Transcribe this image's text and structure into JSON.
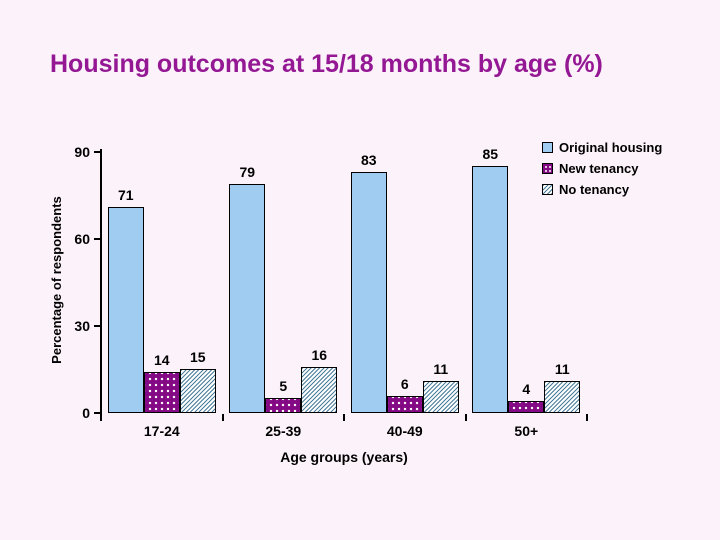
{
  "title": "Housing outcomes at 15/18 months by age (%)",
  "chart_data": {
    "type": "bar",
    "categories": [
      "17-24",
      "25-39",
      "40-49",
      "50+"
    ],
    "series": [
      {
        "name": "Original housing",
        "values": [
          71,
          79,
          83,
          85
        ],
        "pattern": "solid",
        "color": "#A0CCF2"
      },
      {
        "name": "New tenancy",
        "values": [
          14,
          5,
          6,
          4
        ],
        "pattern": "dots",
        "color": "#840984"
      },
      {
        "name": "No tenancy",
        "values": [
          15,
          16,
          11,
          11
        ],
        "pattern": "diagonal-hatch",
        "color": "#4A7C9B"
      }
    ],
    "xlabel": "Age groups (years)",
    "ylabel": "Percentage of respondents",
    "ylim": [
      0,
      90
    ],
    "yticks": [
      0,
      30,
      60,
      90
    ],
    "grid": false,
    "legend_position": "top-right",
    "value_labels": true
  },
  "colors": {
    "background": "#FCF2FA",
    "title": "#941894",
    "text": "#000000",
    "bar_original_housing": "#A0CCF2",
    "bar_new_tenancy": "#840984",
    "hatch_line": "#4A7C9B",
    "bar_border": "#000000"
  }
}
